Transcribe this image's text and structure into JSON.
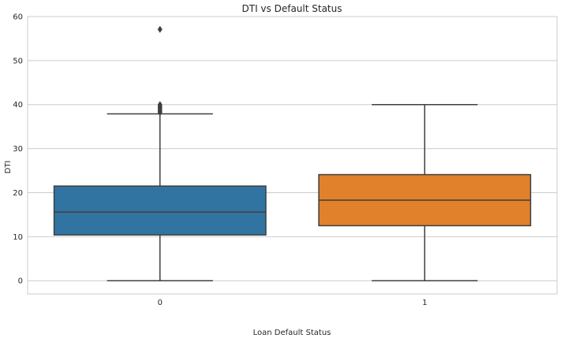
{
  "chart_data": {
    "type": "box",
    "title": "DTI vs Default Status",
    "xlabel": "Loan Default Status",
    "ylabel": "DTI",
    "ylim": [
      -3,
      60
    ],
    "yticks": [
      0,
      10,
      20,
      30,
      40,
      50,
      60
    ],
    "grid": true,
    "categories": [
      "0",
      "1"
    ],
    "boxes": [
      {
        "category": "0",
        "min": 0,
        "q1": 10.4,
        "median": 15.6,
        "q3": 21.5,
        "max": 37.9,
        "outliers": [
          38.2,
          38.5,
          38.8,
          39.1,
          39.4,
          39.7,
          40.0,
          57.1
        ],
        "color": "#3274a1"
      },
      {
        "category": "1",
        "min": 0,
        "q1": 12.5,
        "median": 18.3,
        "q3": 24.1,
        "max": 40.0,
        "outliers": [],
        "color": "#e1812c"
      }
    ]
  },
  "colors": {
    "axes_bg": "#ffffff",
    "grid": "#cccccc",
    "box_line": "#3f3f3f"
  }
}
